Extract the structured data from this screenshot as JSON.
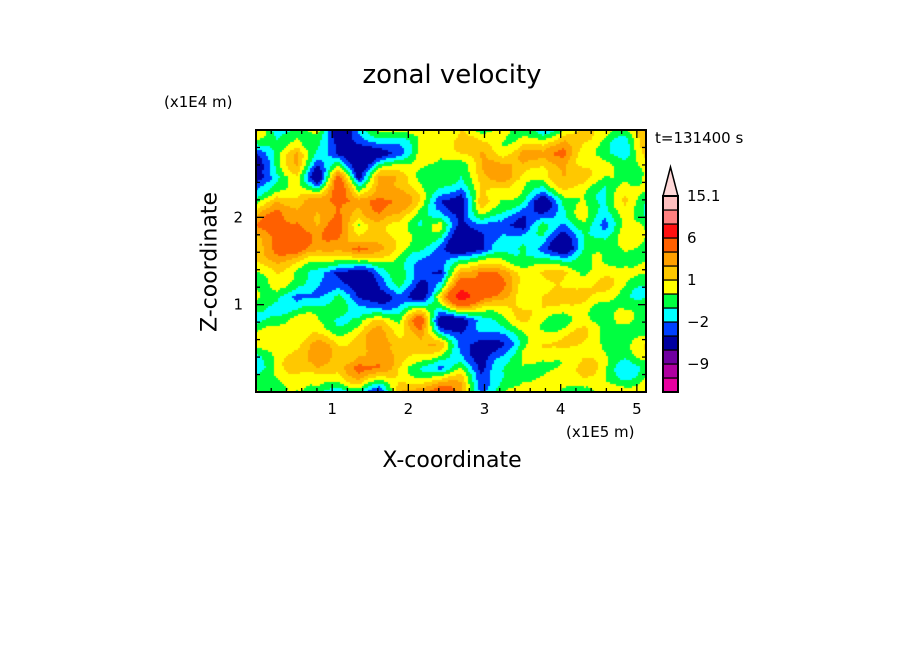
{
  "chart_data": {
    "type": "heatmap",
    "title": "zonal velocity",
    "xlabel": "X-coordinate",
    "ylabel": "Z-coordinate",
    "x_unit": "(x1E5 m)",
    "y_unit": "(x1E4 m)",
    "time_label": "t=131400 s",
    "xlim": [
      0,
      5.12
    ],
    "ylim": [
      0,
      3.0
    ],
    "xticks": [
      "1",
      "2",
      "3",
      "4",
      "5"
    ],
    "xtick_values": [
      1,
      2,
      3,
      4,
      5
    ],
    "yticks": [
      "1",
      "2"
    ],
    "ytick_values": [
      1,
      2
    ],
    "colorbar": {
      "levels": [
        -12,
        -9,
        -6,
        -3,
        -2,
        -1,
        0,
        1,
        2,
        3,
        6,
        9,
        12,
        15.1
      ],
      "colors": [
        "#e800a0",
        "#b000a0",
        "#7000a0",
        "#0000a0",
        "#0040ff",
        "#00ffff",
        "#00ff40",
        "#ffff00",
        "#ffc800",
        "#ffa000",
        "#ff6000",
        "#ff1010",
        "#ff8080",
        "#ffc0c0",
        "#ffd8d8"
      ],
      "labels": [
        "15.1",
        "6",
        "1",
        "-2",
        "-9"
      ],
      "label_values": [
        15.1,
        6,
        1,
        -2,
        -9
      ],
      "extend": "max"
    },
    "grid_note": "coarse approximate field, rows top (z=3) to bottom (z=0), columns x=0 to x=5.12",
    "z": [
      [
        1.5,
        -2.5,
        -0.5,
        0.5,
        -4,
        -1.5,
        -0.5,
        0.5,
        0.5,
        0.5,
        1.5,
        -1.5,
        0.5,
        -0.5,
        -1.5,
        0.5,
        0.5,
        0.5,
        -0.5,
        2.5
      ],
      [
        -2.5,
        -0.5,
        2.5,
        -1.5,
        -4,
        -4,
        -4,
        -2.5,
        0.5,
        -0.5,
        1.5,
        2.5,
        0.5,
        2.5,
        1.5,
        4,
        0.5,
        -0.5,
        -1.5,
        0.5
      ],
      [
        -4,
        -1.5,
        0.5,
        -4,
        4,
        -4,
        2.5,
        1.5,
        0.5,
        -0.5,
        -1.5,
        1.5,
        2.5,
        1.5,
        0.5,
        1.5,
        1.5,
        -0.5,
        0.5,
        0.5
      ],
      [
        -0.5,
        2.5,
        0.5,
        2.5,
        4,
        2.5,
        4,
        2.5,
        0.5,
        -2.5,
        -4,
        2.5,
        -0.5,
        -1.5,
        -4,
        -0.5,
        0.5,
        -1.5,
        0.5,
        -0.5
      ],
      [
        2.5,
        4,
        4,
        1.5,
        4,
        -0.5,
        1.5,
        1.5,
        -1.5,
        0.5,
        -4,
        -2.5,
        -1.5,
        -4,
        -0.5,
        -2.5,
        -0.5,
        -1.5,
        0.5,
        -0.5
      ],
      [
        1.5,
        2.5,
        4,
        2.5,
        2.5,
        4,
        1.5,
        0.5,
        -0.5,
        -2.5,
        -4,
        -4,
        -1.5,
        -0.5,
        -2.5,
        -4,
        -1.5,
        -0.5,
        0.5,
        -0.5
      ],
      [
        0.5,
        1.5,
        -0.5,
        -1.5,
        -4,
        -4,
        -1.5,
        -0.5,
        -2.5,
        -4,
        2.5,
        4,
        2.5,
        0.5,
        0.5,
        1.5,
        0.5,
        0.5,
        0.5,
        -0.5
      ],
      [
        -0.5,
        -0.5,
        -2.5,
        -1.5,
        -0.5,
        -4,
        -4,
        -2.5,
        -4,
        1.5,
        7,
        4,
        2.5,
        0.5,
        1.5,
        0.5,
        1.5,
        0.5,
        -0.5,
        -0.5
      ],
      [
        -1.5,
        -0.5,
        0.5,
        -0.5,
        -0.5,
        -0.5,
        1.5,
        -0.5,
        4,
        -4,
        -4,
        -1.5,
        -0.5,
        0.5,
        0.5,
        -0.5,
        0.5,
        -0.5,
        -0.5,
        -0.5
      ],
      [
        0.5,
        0.5,
        1.5,
        2.5,
        0.5,
        1.5,
        2.5,
        2.5,
        1.5,
        1.5,
        -2.5,
        -4,
        -2.5,
        -0.5,
        0.5,
        1.5,
        0.5,
        0.5,
        -0.5,
        0.5
      ],
      [
        -1.5,
        -0.5,
        1.5,
        2.5,
        1.5,
        4,
        2.5,
        0.5,
        -0.5,
        -2.5,
        0.5,
        -4,
        -1.5,
        0.5,
        -0.5,
        0.5,
        1.5,
        -0.5,
        -1.5,
        -0.5
      ],
      [
        0.5,
        0.5,
        -0.5,
        -0.5,
        -2.5,
        -0.5,
        -2.5,
        1.5,
        2.5,
        4,
        2.5,
        -1.5,
        -0.5,
        0.5,
        0.5,
        -0.5,
        0.5,
        0.5,
        0.5,
        0.5
      ]
    ]
  }
}
